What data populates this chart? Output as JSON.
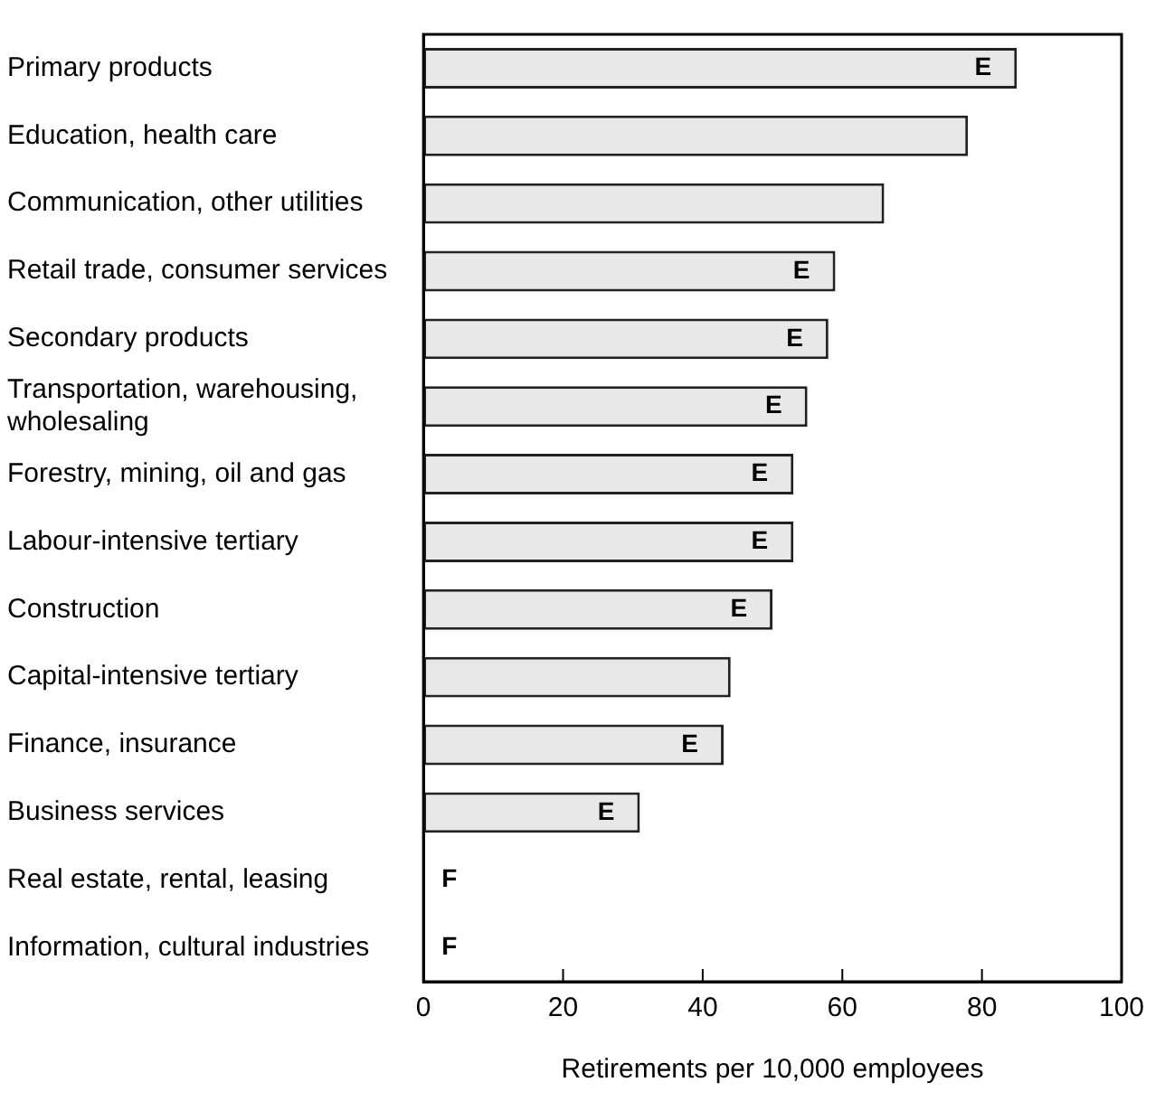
{
  "chart_data": {
    "type": "bar",
    "orientation": "horizontal",
    "xlabel": "Retirements per 10,000 employees",
    "categories": [
      "Primary products",
      "Education, health care",
      "Communication, other utilities",
      "Retail trade, consumer services",
      "Secondary products",
      "Transportation, warehousing, wholesaling",
      "Forestry, mining, oil and gas",
      "Labour-intensive tertiary",
      "Construction",
      "Capital-intensive tertiary",
      "Finance, insurance",
      "Business services",
      "Real estate, rental, leasing",
      "Information, cultural industries"
    ],
    "values": [
      85,
      78,
      66,
      59,
      58,
      55,
      53,
      53,
      50,
      44,
      43,
      31,
      null,
      null
    ],
    "value_labels": [
      "E",
      null,
      null,
      "E",
      "E",
      "E",
      "E",
      "E",
      "E",
      null,
      "E",
      "E",
      "F",
      "F"
    ],
    "color": "#e8e8e8",
    "xlim": [
      0,
      100
    ],
    "xticks": [
      0,
      20,
      40,
      60,
      80,
      100
    ],
    "grid": false,
    "legend": false
  }
}
